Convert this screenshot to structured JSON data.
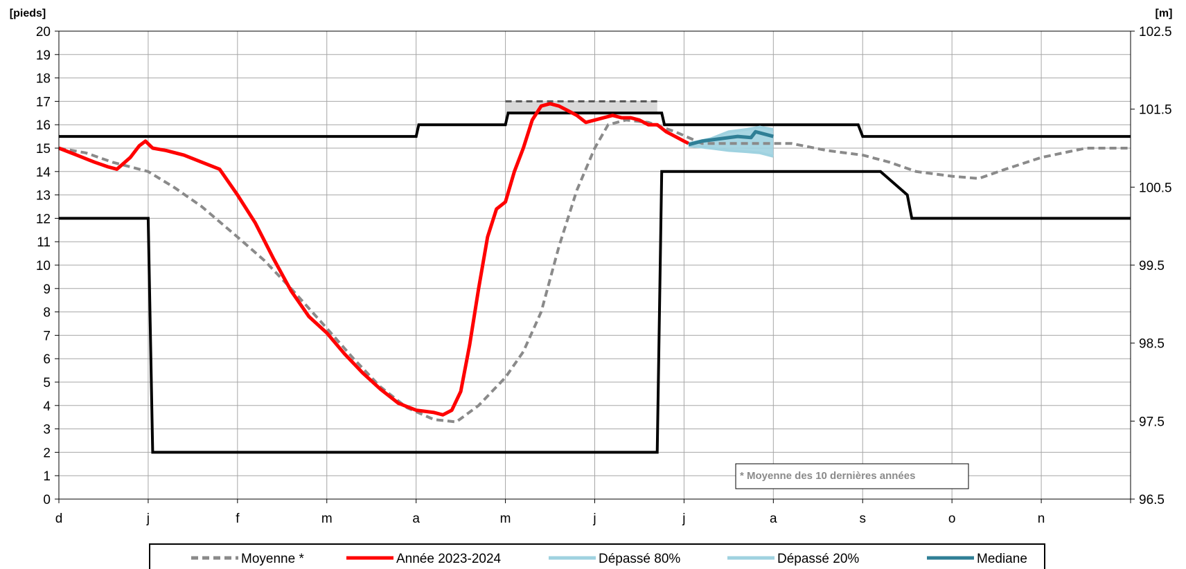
{
  "chart_data": {
    "type": "line",
    "left_axis_label": "[pieds]",
    "right_axis_label": "[m]",
    "x_ticks": [
      "d",
      "j",
      "f",
      "m",
      "a",
      "m",
      "j",
      "j",
      "a",
      "s",
      "o",
      "n"
    ],
    "y_left": {
      "min": 0,
      "max": 20,
      "step": 1,
      "ticks": [
        "0",
        "1",
        "2",
        "3",
        "4",
        "5",
        "6",
        "7",
        "8",
        "9",
        "10",
        "11",
        "12",
        "13",
        "14",
        "15",
        "16",
        "17",
        "18",
        "19",
        "20"
      ]
    },
    "y_right": {
      "min": 96.5,
      "max": 102.5,
      "ticks": [
        "96.5",
        "97.5",
        "98.5",
        "99.5",
        "100.5",
        "101.5",
        "102.5"
      ]
    },
    "grid": true,
    "note": "* Moyenne des 10 dernières années",
    "legend": [
      {
        "key": "moyenne",
        "label": "Moyenne *"
      },
      {
        "key": "annee",
        "label": "Année 2023-2024"
      },
      {
        "key": "d80",
        "label": "Dépassé 80%"
      },
      {
        "key": "d20",
        "label": "Dépassé 20%"
      },
      {
        "key": "mediane",
        "label": "Mediane"
      }
    ],
    "colors": {
      "moyenne": "#8a8a8a",
      "annee": "#ff0000",
      "band": "#9fd2e0",
      "mediane": "#2f7f96",
      "limit": "#000000",
      "target_dash": "#555555",
      "target_fill": "#d9d9d9"
    },
    "series": {
      "upper_limit": [
        [
          0,
          15.5
        ],
        [
          4.0,
          15.5
        ],
        [
          4.03,
          16.0
        ],
        [
          5.0,
          16.0
        ],
        [
          5.03,
          16.5
        ],
        [
          6.75,
          16.5
        ],
        [
          6.78,
          16.0
        ],
        [
          8.95,
          16.0
        ],
        [
          9.0,
          15.5
        ],
        [
          12,
          15.5
        ]
      ],
      "lower_limit": [
        [
          0,
          12
        ],
        [
          1.0,
          12
        ],
        [
          1.05,
          2.0
        ],
        [
          6.7,
          2.0
        ],
        [
          6.75,
          14.0
        ],
        [
          9.2,
          14.0
        ],
        [
          9.5,
          13.0
        ],
        [
          9.55,
          12.0
        ],
        [
          12,
          12
        ]
      ],
      "target_band": {
        "x_start": 5.0,
        "x_end": 6.7,
        "top": 17.0,
        "bottom": 16.5
      },
      "moyenne": [
        [
          0,
          15.0
        ],
        [
          0.3,
          14.8
        ],
        [
          0.6,
          14.4
        ],
        [
          1.0,
          14.0
        ],
        [
          1.3,
          13.3
        ],
        [
          1.6,
          12.5
        ],
        [
          2.0,
          11.2
        ],
        [
          2.3,
          10.2
        ],
        [
          2.6,
          9.0
        ],
        [
          3.0,
          7.3
        ],
        [
          3.3,
          6.0
        ],
        [
          3.6,
          4.8
        ],
        [
          3.9,
          3.9
        ],
        [
          4.2,
          3.4
        ],
        [
          4.45,
          3.3
        ],
        [
          4.7,
          4.0
        ],
        [
          5.0,
          5.2
        ],
        [
          5.2,
          6.3
        ],
        [
          5.4,
          8.0
        ],
        [
          5.6,
          10.8
        ],
        [
          5.8,
          13.2
        ],
        [
          6.0,
          15.0
        ],
        [
          6.15,
          16.0
        ],
        [
          6.35,
          16.2
        ],
        [
          6.6,
          16.1
        ],
        [
          6.9,
          15.7
        ],
        [
          7.2,
          15.2
        ],
        [
          7.5,
          15.2
        ],
        [
          7.8,
          15.2
        ],
        [
          8.2,
          15.2
        ],
        [
          8.6,
          14.9
        ],
        [
          9.0,
          14.7
        ],
        [
          9.3,
          14.4
        ],
        [
          9.6,
          14.0
        ],
        [
          10.0,
          13.8
        ],
        [
          10.3,
          13.7
        ],
        [
          10.6,
          14.1
        ],
        [
          11.0,
          14.6
        ],
        [
          11.5,
          15.0
        ],
        [
          12.0,
          15.0
        ]
      ],
      "annee": [
        [
          0,
          15.0
        ],
        [
          0.2,
          14.7
        ],
        [
          0.4,
          14.4
        ],
        [
          0.55,
          14.2
        ],
        [
          0.65,
          14.1
        ],
        [
          0.8,
          14.6
        ],
        [
          0.9,
          15.1
        ],
        [
          0.97,
          15.3
        ],
        [
          1.05,
          15.0
        ],
        [
          1.2,
          14.9
        ],
        [
          1.4,
          14.7
        ],
        [
          1.6,
          14.4
        ],
        [
          1.8,
          14.1
        ],
        [
          2.0,
          13.0
        ],
        [
          2.2,
          11.8
        ],
        [
          2.4,
          10.3
        ],
        [
          2.6,
          8.9
        ],
        [
          2.8,
          7.8
        ],
        [
          3.0,
          7.1
        ],
        [
          3.2,
          6.2
        ],
        [
          3.4,
          5.4
        ],
        [
          3.6,
          4.7
        ],
        [
          3.8,
          4.1
        ],
        [
          4.0,
          3.8
        ],
        [
          4.2,
          3.7
        ],
        [
          4.3,
          3.6
        ],
        [
          4.4,
          3.8
        ],
        [
          4.5,
          4.6
        ],
        [
          4.6,
          6.6
        ],
        [
          4.7,
          9.0
        ],
        [
          4.8,
          11.2
        ],
        [
          4.9,
          12.4
        ],
        [
          5.0,
          12.7
        ],
        [
          5.1,
          14.0
        ],
        [
          5.2,
          15.0
        ],
        [
          5.3,
          16.2
        ],
        [
          5.4,
          16.8
        ],
        [
          5.5,
          16.9
        ],
        [
          5.6,
          16.8
        ],
        [
          5.7,
          16.6
        ],
        [
          5.8,
          16.4
        ],
        [
          5.9,
          16.1
        ],
        [
          6.0,
          16.2
        ],
        [
          6.1,
          16.3
        ],
        [
          6.2,
          16.4
        ],
        [
          6.3,
          16.3
        ],
        [
          6.4,
          16.3
        ],
        [
          6.5,
          16.2
        ],
        [
          6.6,
          16.0
        ],
        [
          6.7,
          16.0
        ],
        [
          6.8,
          15.7
        ],
        [
          6.9,
          15.5
        ],
        [
          7.0,
          15.3
        ],
        [
          7.05,
          15.2
        ]
      ],
      "depasse_20": [
        [
          7.05,
          15.2
        ],
        [
          7.3,
          15.4
        ],
        [
          7.5,
          15.7
        ],
        [
          7.7,
          15.8
        ],
        [
          7.85,
          15.9
        ],
        [
          8.0,
          15.8
        ]
      ],
      "depasse_80": [
        [
          7.05,
          15.1
        ],
        [
          7.3,
          15.0
        ],
        [
          7.5,
          14.9
        ],
        [
          7.7,
          14.85
        ],
        [
          7.85,
          14.8
        ],
        [
          8.0,
          14.65
        ]
      ],
      "mediane": [
        [
          7.05,
          15.15
        ],
        [
          7.2,
          15.3
        ],
        [
          7.4,
          15.4
        ],
        [
          7.6,
          15.5
        ],
        [
          7.75,
          15.45
        ],
        [
          7.8,
          15.7
        ],
        [
          7.9,
          15.6
        ],
        [
          8.0,
          15.5
        ]
      ]
    }
  }
}
